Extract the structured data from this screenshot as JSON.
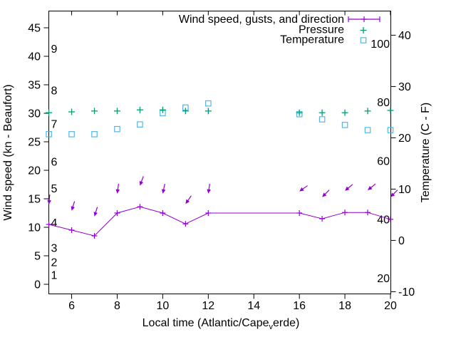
{
  "chart_data": {
    "type": "line",
    "title": "Wind speed, gusts, and direction",
    "grid": false,
    "legend_position": "top-right",
    "legend": [
      {
        "label": "Wind speed, gusts, and direction",
        "sample": "errorbar",
        "color": "#9400d3"
      },
      {
        "label": "Pressure",
        "sample": "plus",
        "color": "#009e73"
      },
      {
        "label": "Temperature",
        "sample": "square",
        "color": "#56b4e9"
      }
    ],
    "axes": {
      "x": {
        "label_full": "Local time (Atlantic/Cape_verde)",
        "label_parts": {
          "prefix": "Local time (Atlantic/Cape",
          "sub": "v",
          "suffix": "erde)"
        },
        "range": [
          5,
          20
        ],
        "ticks": [
          6,
          8,
          10,
          12,
          14,
          16,
          18,
          20
        ]
      },
      "y_left": {
        "label": "Wind speed (kn - Beaufort)",
        "range": [
          0,
          48
        ],
        "ticks": [
          0,
          5,
          10,
          15,
          20,
          25,
          30,
          35,
          40,
          45
        ],
        "inner_beaufort_labels": {
          "labels": [
            "1",
            "2",
            "3",
            "4",
            "5",
            "6",
            "7",
            "8",
            "9"
          ],
          "kn_positions": [
            1.6,
            3.9,
            6.4,
            10.8,
            16.8,
            21.5,
            28.1,
            34.0,
            41.3
          ]
        }
      },
      "y_right": {
        "label": "Temperature (C - F)",
        "range_c": [
          -10,
          44
        ],
        "ticks_c": [
          -10,
          0,
          10,
          20,
          30,
          40
        ],
        "inner_fahrenheit_labels": [
          20,
          40,
          60,
          80,
          100
        ]
      }
    },
    "x_hours": [
      5,
      6,
      7,
      8,
      9,
      10,
      11,
      12,
      16,
      17,
      18,
      19,
      20
    ],
    "series": [
      {
        "name": "Wind speed (kn)",
        "color": "#9400d3",
        "marker": "plus-line",
        "values": [
          10.5,
          9.5,
          8.5,
          12.5,
          13.6,
          12.5,
          10.6,
          12.5,
          12.5,
          11.5,
          12.6,
          12.6,
          11.4
        ]
      },
      {
        "name": "Wind gusts (kn, arrow tips)",
        "color": "#9400d3",
        "marker": "arrow",
        "values": [
          14.0,
          12.9,
          11.9,
          15.9,
          17.3,
          15.9,
          14.1,
          15.9,
          16.3,
          15.3,
          16.4,
          16.5,
          15.3
        ]
      },
      {
        "name": "Wind direction (deg arrow points toward, 180 = south)",
        "color": "#9400d3",
        "values": [
          185,
          197,
          197,
          188,
          200,
          192,
          215,
          188,
          235,
          225,
          230,
          231,
          225
        ]
      },
      {
        "name": "Pressure (inHg)",
        "color": "#009e73",
        "marker": "plus",
        "values": [
          30.1,
          30.25,
          30.4,
          30.4,
          30.6,
          30.6,
          30.4,
          30.4,
          30.1,
          30.1,
          30.1,
          30.4,
          30.5
        ]
      },
      {
        "name": "Temperature (C)",
        "color": "#56b4e9",
        "marker": "square",
        "values": [
          20.7,
          20.7,
          20.7,
          21.7,
          22.6,
          24.8,
          25.9,
          26.7,
          24.6,
          23.6,
          22.5,
          21.5,
          21.5
        ]
      }
    ],
    "colors": {
      "wind": "#9400d3",
      "pressure": "#009e73",
      "temperature": "#56b4e9",
      "axis": "#000000"
    }
  }
}
